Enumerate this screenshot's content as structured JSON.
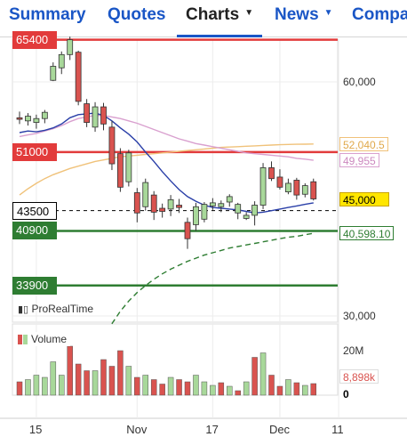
{
  "tabs": [
    {
      "label": "Summary",
      "active": false
    },
    {
      "label": "Quotes",
      "active": false
    },
    {
      "label": "Charts",
      "active": true
    },
    {
      "label": "News",
      "active": false
    },
    {
      "label": "Compa",
      "active": false
    }
  ],
  "colors": {
    "tab_link": "#1a56c6",
    "up_candle": "#a8d89a",
    "down_candle": "#d9534f",
    "resistance": "#e23b3b",
    "support": "#2e7d32",
    "ma_blue": "#2a3fa8",
    "ma_pink": "#d9a0cf",
    "ma_orange": "#f0c27a"
  },
  "levels": [
    {
      "label": "65400",
      "value": 65400,
      "style": "solid",
      "color": "#e23b3b"
    },
    {
      "label": "51000",
      "value": 51000,
      "style": "solid",
      "color": "#e23b3b"
    },
    {
      "label": "43500",
      "value": 43500,
      "style": "dashed",
      "color": "#000000"
    },
    {
      "label": "40900",
      "value": 40900,
      "style": "solid",
      "color": "#2e7d32"
    },
    {
      "label": "33900",
      "value": 33900,
      "style": "solid",
      "color": "#2e7d32"
    }
  ],
  "right_axis": {
    "ticks": [
      {
        "label": "60,000",
        "value": 60000
      },
      {
        "label": "30,000",
        "value": 30000
      }
    ],
    "badges": [
      {
        "label": "52,040.5",
        "value": 52040.5,
        "color": "#f0c27a",
        "fill": "#ffffff",
        "text_color": "#e0a84a"
      },
      {
        "label": "49,955",
        "value": 49955,
        "color": "#d9a0cf",
        "fill": "#ffffff",
        "text_color": "#cc88bf"
      },
      {
        "label": "45,000",
        "value": 45000,
        "color": "#c9a400",
        "fill": "#ffe600",
        "text_color": "#000000"
      },
      {
        "label": "40,598.10",
        "value": 40598.1,
        "color": "#2e7d32",
        "fill": "#ffffff",
        "text_color": "#2e7d32"
      }
    ]
  },
  "price_legend": "ProRealTime",
  "volume_panel": {
    "legend": "Volume",
    "ticks": [
      {
        "label": "20M"
      },
      {
        "label": "0"
      }
    ],
    "badge": {
      "label": "8,898k",
      "color": "#d9534f"
    }
  },
  "x_axis": {
    "labels": [
      {
        "label": "15",
        "index": 2
      },
      {
        "label": "Nov",
        "index": 14
      },
      {
        "label": "17",
        "index": 23
      },
      {
        "label": "Dec",
        "index": 31
      },
      {
        "label": "11",
        "index": 38
      }
    ]
  },
  "chart_data": {
    "type": "candlestick",
    "candles": [
      {
        "o": 55400,
        "h": 56200,
        "l": 54600,
        "c": 55200
      },
      {
        "o": 55000,
        "h": 56000,
        "l": 54400,
        "c": 55600
      },
      {
        "o": 54800,
        "h": 55800,
        "l": 54000,
        "c": 55300
      },
      {
        "o": 55300,
        "h": 56400,
        "l": 54700,
        "c": 56100
      },
      {
        "o": 60200,
        "h": 62500,
        "l": 60100,
        "c": 62000
      },
      {
        "o": 61800,
        "h": 63900,
        "l": 61000,
        "c": 63500
      },
      {
        "o": 63500,
        "h": 65800,
        "l": 62800,
        "c": 65400
      },
      {
        "o": 63800,
        "h": 64000,
        "l": 57000,
        "c": 57500
      },
      {
        "o": 57200,
        "h": 57800,
        "l": 54200,
        "c": 54800
      },
      {
        "o": 54200,
        "h": 57400,
        "l": 53600,
        "c": 56800
      },
      {
        "o": 56800,
        "h": 57300,
        "l": 53800,
        "c": 54600
      },
      {
        "o": 54200,
        "h": 55000,
        "l": 48700,
        "c": 49500
      },
      {
        "o": 50800,
        "h": 51500,
        "l": 45900,
        "c": 46500
      },
      {
        "o": 47200,
        "h": 51300,
        "l": 46600,
        "c": 50900
      },
      {
        "o": 45800,
        "h": 46400,
        "l": 42000,
        "c": 43200
      },
      {
        "o": 44000,
        "h": 47600,
        "l": 43500,
        "c": 47100
      },
      {
        "o": 45500,
        "h": 46000,
        "l": 42300,
        "c": 43300
      },
      {
        "o": 43800,
        "h": 44400,
        "l": 42600,
        "c": 43400
      },
      {
        "o": 43700,
        "h": 45500,
        "l": 42800,
        "c": 44900
      },
      {
        "o": 44200,
        "h": 45000,
        "l": 43200,
        "c": 43900
      },
      {
        "o": 42000,
        "h": 42600,
        "l": 38600,
        "c": 39900
      },
      {
        "o": 41700,
        "h": 44500,
        "l": 40900,
        "c": 44000
      },
      {
        "o": 42400,
        "h": 44600,
        "l": 42000,
        "c": 44300
      },
      {
        "o": 44100,
        "h": 45100,
        "l": 43600,
        "c": 44500
      },
      {
        "o": 44000,
        "h": 44800,
        "l": 43300,
        "c": 44400
      },
      {
        "o": 44600,
        "h": 45600,
        "l": 44000,
        "c": 45300
      },
      {
        "o": 43200,
        "h": 44500,
        "l": 42400,
        "c": 44300
      },
      {
        "o": 42500,
        "h": 43300,
        "l": 42300,
        "c": 42900
      },
      {
        "o": 42900,
        "h": 44700,
        "l": 41600,
        "c": 44200
      },
      {
        "o": 44200,
        "h": 49600,
        "l": 43700,
        "c": 49000
      },
      {
        "o": 49000,
        "h": 49800,
        "l": 47300,
        "c": 47600
      },
      {
        "o": 47800,
        "h": 48800,
        "l": 46200,
        "c": 46500
      },
      {
        "o": 45900,
        "h": 47600,
        "l": 45600,
        "c": 47000
      },
      {
        "o": 47400,
        "h": 47700,
        "l": 44900,
        "c": 45500
      },
      {
        "o": 45600,
        "h": 47000,
        "l": 45200,
        "c": 46700
      },
      {
        "o": 47200,
        "h": 47600,
        "l": 44800,
        "c": 45000
      }
    ],
    "ma_blue": [
      53500,
      53700,
      53600,
      53800,
      54100,
      54600,
      55400,
      55800,
      55900,
      56000,
      55700,
      55000,
      54100,
      53300,
      52300,
      51000,
      49800,
      48500,
      47300,
      46200,
      45300,
      44700,
      44200,
      43900,
      43800,
      43700,
      43600,
      43400,
      43200,
      43300,
      43500,
      43700,
      43900,
      44100,
      44300,
      44500
    ],
    "ma_pink": [
      53000,
      53200,
      53400,
      53700,
      54000,
      54400,
      54900,
      55300,
      55500,
      55700,
      55700,
      55500,
      55300,
      55000,
      54700,
      54300,
      53900,
      53500,
      53100,
      52700,
      52400,
      52100,
      51900,
      51700,
      51500,
      51300,
      51100,
      50900,
      50800,
      50700,
      50600,
      50500,
      50400,
      50200,
      50100,
      49955
    ],
    "ma_orange": [
      45500,
      46300,
      47000,
      47600,
      48100,
      48500,
      48900,
      49200,
      49500,
      49800,
      50000,
      50200,
      50400,
      50500,
      50600,
      50700,
      50800,
      50900,
      51000,
      51100,
      51200,
      51300,
      51400,
      51500,
      51600,
      51650,
      51700,
      51750,
      51800,
      51850,
      51900,
      51950,
      51980,
      52000,
      52020,
      52040.5
    ],
    "ma_green": [
      null,
      null,
      null,
      null,
      null,
      null,
      null,
      null,
      null,
      null,
      null,
      29000,
      30600,
      31900,
      33000,
      33900,
      34700,
      35400,
      36000,
      36500,
      37000,
      37400,
      37800,
      38100,
      38400,
      38700,
      38900,
      39100,
      39300,
      39500,
      39700,
      39900,
      40100,
      40200,
      40400,
      40598.1
    ],
    "volume": [
      {
        "v": 0.3,
        "up": false
      },
      {
        "v": 0.35,
        "up": true
      },
      {
        "v": 0.45,
        "up": true
      },
      {
        "v": 0.4,
        "up": true
      },
      {
        "v": 0.75,
        "up": true
      },
      {
        "v": 0.45,
        "up": true
      },
      {
        "v": 1.1,
        "up": false
      },
      {
        "v": 0.7,
        "up": false
      },
      {
        "v": 0.55,
        "up": false
      },
      {
        "v": 0.55,
        "up": true
      },
      {
        "v": 0.8,
        "up": false
      },
      {
        "v": 0.65,
        "up": false
      },
      {
        "v": 1.0,
        "up": false
      },
      {
        "v": 0.65,
        "up": true
      },
      {
        "v": 0.4,
        "up": false
      },
      {
        "v": 0.45,
        "up": true
      },
      {
        "v": 0.35,
        "up": false
      },
      {
        "v": 0.25,
        "up": false
      },
      {
        "v": 0.4,
        "up": true
      },
      {
        "v": 0.35,
        "up": false
      },
      {
        "v": 0.3,
        "up": false
      },
      {
        "v": 0.45,
        "up": true
      },
      {
        "v": 0.3,
        "up": true
      },
      {
        "v": 0.22,
        "up": true
      },
      {
        "v": 0.28,
        "up": false
      },
      {
        "v": 0.2,
        "up": true
      },
      {
        "v": 0.1,
        "up": false
      },
      {
        "v": 0.3,
        "up": true
      },
      {
        "v": 0.85,
        "up": false
      },
      {
        "v": 0.95,
        "up": true
      },
      {
        "v": 0.45,
        "up": false
      },
      {
        "v": 0.2,
        "up": false
      },
      {
        "v": 0.35,
        "up": true
      },
      {
        "v": 0.28,
        "up": false
      },
      {
        "v": 0.22,
        "up": true
      },
      {
        "v": 0.26,
        "up": false
      }
    ]
  }
}
